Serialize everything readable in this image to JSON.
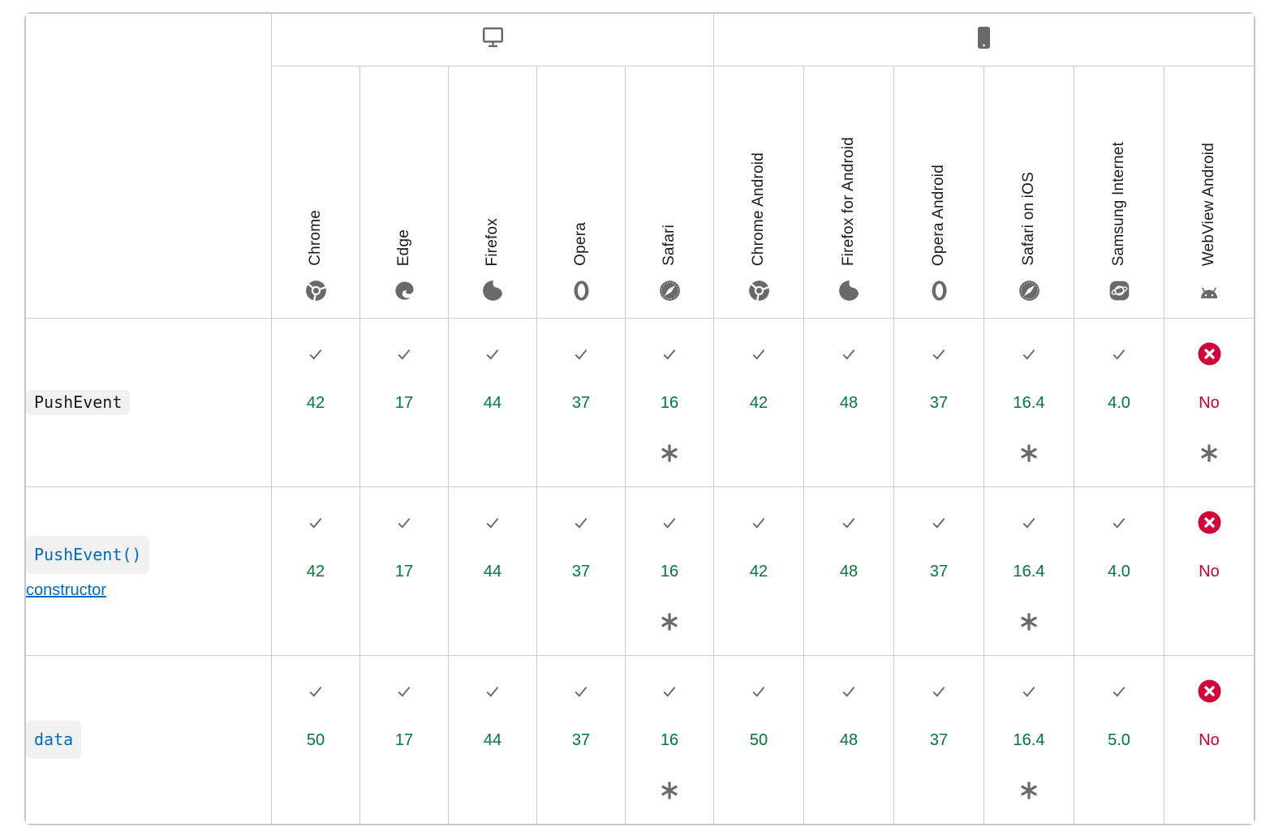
{
  "colors": {
    "border": "#cdcdcd",
    "outer_border": "#c6c6c6",
    "text": "#1b1b1b",
    "icon_gray": "#696969",
    "support_yes_green": "#007936",
    "support_no_red": "#d30038",
    "link_blue": "#0069c2",
    "code_background": "#f2f1f1"
  },
  "table": {
    "platforms": [
      {
        "id": "desktop",
        "icon": "desktop-icon",
        "span": 5
      },
      {
        "id": "mobile",
        "icon": "mobile-icon",
        "span": 6
      }
    ],
    "browsers": [
      {
        "name": "Chrome",
        "icon": "chrome-icon"
      },
      {
        "name": "Edge",
        "icon": "edge-icon"
      },
      {
        "name": "Firefox",
        "icon": "firefox-icon"
      },
      {
        "name": "Opera",
        "icon": "opera-icon"
      },
      {
        "name": "Safari",
        "icon": "safari-icon"
      },
      {
        "name": "Chrome Android",
        "icon": "chrome-icon"
      },
      {
        "name": "Firefox for Android",
        "icon": "firefox-icon"
      },
      {
        "name": "Opera Android",
        "icon": "opera-icon"
      },
      {
        "name": "Safari on iOS",
        "icon": "safari-icon"
      },
      {
        "name": "Samsung Internet",
        "icon": "samsung-icon"
      },
      {
        "name": "WebView Android",
        "icon": "webview-android-icon"
      }
    ],
    "rows": [
      {
        "label": {
          "code": "PushEvent",
          "suffix": "",
          "is_link": false
        },
        "cells": [
          {
            "support": "yes",
            "version": "42",
            "note": false
          },
          {
            "support": "yes",
            "version": "17",
            "note": false
          },
          {
            "support": "yes",
            "version": "44",
            "note": false
          },
          {
            "support": "yes",
            "version": "37",
            "note": false
          },
          {
            "support": "yes",
            "version": "16",
            "note": true
          },
          {
            "support": "yes",
            "version": "42",
            "note": false
          },
          {
            "support": "yes",
            "version": "48",
            "note": false
          },
          {
            "support": "yes",
            "version": "37",
            "note": false
          },
          {
            "support": "yes",
            "version": "16.4",
            "note": true
          },
          {
            "support": "yes",
            "version": "4.0",
            "note": false
          },
          {
            "support": "no",
            "version": "No",
            "note": true
          }
        ]
      },
      {
        "label": {
          "code": "PushEvent()",
          "suffix": "constructor",
          "is_link": true
        },
        "cells": [
          {
            "support": "yes",
            "version": "42",
            "note": false
          },
          {
            "support": "yes",
            "version": "17",
            "note": false
          },
          {
            "support": "yes",
            "version": "44",
            "note": false
          },
          {
            "support": "yes",
            "version": "37",
            "note": false
          },
          {
            "support": "yes",
            "version": "16",
            "note": true
          },
          {
            "support": "yes",
            "version": "42",
            "note": false
          },
          {
            "support": "yes",
            "version": "48",
            "note": false
          },
          {
            "support": "yes",
            "version": "37",
            "note": false
          },
          {
            "support": "yes",
            "version": "16.4",
            "note": true
          },
          {
            "support": "yes",
            "version": "4.0",
            "note": false
          },
          {
            "support": "no",
            "version": "No",
            "note": false
          }
        ]
      },
      {
        "label": {
          "code": "data",
          "suffix": "",
          "is_link": true
        },
        "cells": [
          {
            "support": "yes",
            "version": "50",
            "note": false
          },
          {
            "support": "yes",
            "version": "17",
            "note": false
          },
          {
            "support": "yes",
            "version": "44",
            "note": false
          },
          {
            "support": "yes",
            "version": "37",
            "note": false
          },
          {
            "support": "yes",
            "version": "16",
            "note": true
          },
          {
            "support": "yes",
            "version": "50",
            "note": false
          },
          {
            "support": "yes",
            "version": "48",
            "note": false
          },
          {
            "support": "yes",
            "version": "37",
            "note": false
          },
          {
            "support": "yes",
            "version": "16.4",
            "note": true
          },
          {
            "support": "yes",
            "version": "5.0",
            "note": false
          },
          {
            "support": "no",
            "version": "No",
            "note": false
          }
        ]
      }
    ]
  }
}
